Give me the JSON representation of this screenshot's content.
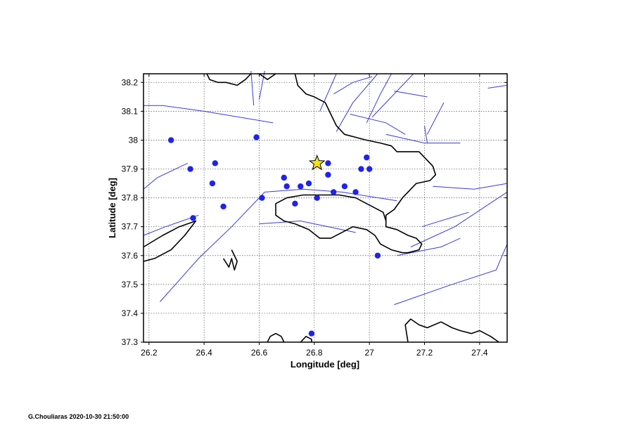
{
  "map": {
    "xlabel": "Longitude [deg]",
    "ylabel": "Latitude [deg]",
    "xlim": [
      26.18,
      27.5
    ],
    "ylim": [
      37.3,
      38.23
    ],
    "xticks": [
      26.2,
      26.4,
      26.6,
      26.8,
      27.0,
      27.2,
      27.4
    ],
    "xtick_labels": [
      "26.2",
      "26.4",
      "26.6",
      "26.8",
      "27",
      "27.2",
      "27.4"
    ],
    "yticks": [
      37.3,
      37.4,
      37.5,
      37.6,
      37.7,
      37.8,
      37.9,
      38.0,
      38.1,
      38.2
    ],
    "ytick_labels": [
      "37.3",
      "37.4",
      "37.5",
      "37.6",
      "37.7",
      "37.8",
      "37.9",
      "38",
      "38.1",
      "38.2"
    ],
    "grid": true,
    "colors": {
      "events": "#1f22ee",
      "faults": "#3a3ad6",
      "coast": "#000000",
      "star": "#f5e11a"
    },
    "mainshock": {
      "lon": 26.81,
      "lat": 37.92,
      "marker": "star-icon"
    },
    "events": [
      {
        "lon": 26.28,
        "lat": 38.0
      },
      {
        "lon": 26.59,
        "lat": 38.01
      },
      {
        "lon": 26.35,
        "lat": 37.9
      },
      {
        "lon": 26.44,
        "lat": 37.92
      },
      {
        "lon": 26.43,
        "lat": 37.85
      },
      {
        "lon": 26.47,
        "lat": 37.77
      },
      {
        "lon": 26.36,
        "lat": 37.73
      },
      {
        "lon": 26.61,
        "lat": 37.8
      },
      {
        "lon": 26.69,
        "lat": 37.87
      },
      {
        "lon": 26.7,
        "lat": 37.84
      },
      {
        "lon": 26.75,
        "lat": 37.84
      },
      {
        "lon": 26.78,
        "lat": 37.85
      },
      {
        "lon": 26.73,
        "lat": 37.78
      },
      {
        "lon": 26.81,
        "lat": 37.8
      },
      {
        "lon": 26.85,
        "lat": 37.92
      },
      {
        "lon": 26.85,
        "lat": 37.88
      },
      {
        "lon": 26.87,
        "lat": 37.82
      },
      {
        "lon": 26.91,
        "lat": 37.84
      },
      {
        "lon": 26.95,
        "lat": 37.82
      },
      {
        "lon": 26.97,
        "lat": 37.9
      },
      {
        "lon": 26.99,
        "lat": 37.94
      },
      {
        "lon": 27.0,
        "lat": 37.9
      },
      {
        "lon": 27.03,
        "lat": 37.6
      },
      {
        "lon": 26.79,
        "lat": 37.33
      }
    ],
    "faults": [
      [
        [
          26.18,
          38.12
        ],
        [
          26.25,
          38.12
        ],
        [
          26.4,
          38.1
        ],
        [
          26.65,
          38.06
        ]
      ],
      [
        [
          26.57,
          38.24
        ],
        [
          26.58,
          38.12
        ]
      ],
      [
        [
          26.62,
          38.24
        ],
        [
          26.6,
          38.14
        ]
      ],
      [
        [
          26.82,
          38.1
        ],
        [
          26.88,
          38.23
        ]
      ],
      [
        [
          26.87,
          38.16
        ],
        [
          26.94,
          38.2
        ],
        [
          27.01,
          38.22
        ]
      ],
      [
        [
          26.88,
          38.03
        ],
        [
          26.94,
          38.13
        ],
        [
          27.03,
          38.23
        ]
      ],
      [
        [
          27.08,
          38.23
        ],
        [
          27.04,
          38.16
        ],
        [
          26.99,
          38.06
        ]
      ],
      [
        [
          27.01,
          38.08
        ],
        [
          27.07,
          38.14
        ],
        [
          27.16,
          38.23
        ]
      ],
      [
        [
          27.09,
          38.17
        ],
        [
          27.21,
          38.15
        ]
      ],
      [
        [
          27.27,
          38.13
        ],
        [
          27.21,
          38.02
        ]
      ],
      [
        [
          27.2,
          38.05
        ],
        [
          27.21,
          37.99
        ]
      ],
      [
        [
          26.93,
          38.09
        ],
        [
          27.06,
          38.06
        ],
        [
          27.13,
          38.02
        ]
      ],
      [
        [
          27.06,
          38.02
        ],
        [
          27.2,
          37.99
        ],
        [
          27.33,
          37.99
        ]
      ],
      [
        [
          26.18,
          37.83
        ],
        [
          26.23,
          37.87
        ],
        [
          26.34,
          37.92
        ]
      ],
      [
        [
          26.18,
          37.67
        ],
        [
          26.26,
          37.7
        ],
        [
          26.38,
          37.74
        ]
      ],
      [
        [
          26.24,
          37.44
        ],
        [
          26.38,
          37.59
        ],
        [
          26.5,
          37.7
        ],
        [
          26.62,
          37.82
        ]
      ],
      [
        [
          26.62,
          37.82
        ],
        [
          26.76,
          37.83
        ],
        [
          26.9,
          37.82
        ],
        [
          27.1,
          37.79
        ]
      ],
      [
        [
          26.6,
          37.71
        ],
        [
          26.75,
          37.72
        ],
        [
          26.95,
          37.68
        ]
      ],
      [
        [
          27.23,
          37.84
        ],
        [
          27.38,
          37.83
        ],
        [
          27.5,
          37.85
        ]
      ],
      [
        [
          27.19,
          37.7
        ],
        [
          27.36,
          37.75
        ]
      ],
      [
        [
          27.15,
          37.63
        ],
        [
          27.31,
          37.7
        ],
        [
          27.5,
          37.82
        ]
      ],
      [
        [
          27.1,
          37.6
        ],
        [
          27.26,
          37.63
        ],
        [
          27.33,
          37.66
        ]
      ],
      [
        [
          27.09,
          37.43
        ],
        [
          27.3,
          37.5
        ],
        [
          27.46,
          37.55
        ],
        [
          27.5,
          37.64
        ]
      ],
      [
        [
          27.43,
          38.18
        ],
        [
          27.5,
          38.19
        ]
      ]
    ],
    "coastlines": [
      [
        [
          26.41,
          38.23
        ],
        [
          26.42,
          38.21
        ],
        [
          26.45,
          38.2
        ],
        [
          26.48,
          38.2
        ],
        [
          26.52,
          38.19
        ],
        [
          26.55,
          38.21
        ],
        [
          26.57,
          38.23
        ]
      ],
      [
        [
          26.6,
          38.23
        ],
        [
          26.63,
          38.21
        ],
        [
          26.66,
          38.23
        ]
      ],
      [
        [
          26.73,
          38.23
        ],
        [
          26.74,
          38.19
        ],
        [
          26.77,
          38.16
        ],
        [
          26.8,
          38.15
        ],
        [
          26.84,
          38.13
        ],
        [
          26.86,
          38.09
        ],
        [
          26.88,
          38.05
        ],
        [
          26.91,
          38.02
        ],
        [
          26.95,
          38.01
        ],
        [
          26.99,
          38.0
        ],
        [
          27.04,
          37.99
        ],
        [
          27.08,
          37.98
        ],
        [
          27.1,
          37.96
        ],
        [
          27.14,
          37.96
        ],
        [
          27.18,
          37.96
        ],
        [
          27.21,
          37.93
        ],
        [
          27.23,
          37.91
        ],
        [
          27.24,
          37.88
        ],
        [
          27.22,
          37.86
        ],
        [
          27.17,
          37.85
        ],
        [
          27.14,
          37.82
        ],
        [
          27.12,
          37.8
        ],
        [
          27.09,
          37.76
        ],
        [
          27.06,
          37.74
        ],
        [
          27.06,
          37.7
        ],
        [
          27.1,
          37.69
        ],
        [
          27.14,
          37.67
        ],
        [
          27.17,
          37.66
        ],
        [
          27.19,
          37.64
        ],
        [
          27.18,
          37.62
        ],
        [
          27.14,
          37.61
        ],
        [
          27.12,
          37.61
        ],
        [
          27.08,
          37.62
        ],
        [
          27.04,
          37.64
        ],
        [
          27.02,
          37.67
        ],
        [
          26.99,
          37.69
        ],
        [
          26.94,
          37.7
        ],
        [
          26.9,
          37.68
        ],
        [
          26.86,
          37.66
        ],
        [
          26.82,
          37.66
        ],
        [
          26.78,
          37.69
        ],
        [
          26.73,
          37.71
        ],
        [
          26.69,
          37.72
        ],
        [
          26.66,
          37.74
        ],
        [
          26.66,
          37.78
        ],
        [
          26.7,
          37.8
        ],
        [
          26.76,
          37.81
        ],
        [
          26.82,
          37.81
        ],
        [
          26.89,
          37.81
        ],
        [
          26.95,
          37.8
        ],
        [
          27.01,
          37.77
        ],
        [
          27.05,
          37.75
        ],
        [
          27.06,
          37.72
        ]
      ],
      [
        [
          26.18,
          37.63
        ],
        [
          26.25,
          37.67
        ],
        [
          26.31,
          37.7
        ],
        [
          26.37,
          37.72
        ],
        [
          26.33,
          37.67
        ],
        [
          26.28,
          37.62
        ],
        [
          26.22,
          37.59
        ],
        [
          26.18,
          37.58
        ]
      ],
      [
        [
          26.5,
          37.62
        ],
        [
          26.52,
          37.58
        ],
        [
          26.51,
          37.55
        ],
        [
          26.5,
          37.59
        ],
        [
          26.49,
          37.56
        ],
        [
          26.47,
          37.59
        ]
      ],
      [
        [
          27.14,
          37.3
        ],
        [
          27.13,
          37.36
        ],
        [
          27.15,
          37.38
        ],
        [
          27.18,
          37.36
        ],
        [
          27.21,
          37.35
        ],
        [
          27.26,
          37.37
        ],
        [
          27.3,
          37.35
        ],
        [
          27.33,
          37.34
        ],
        [
          27.37,
          37.33
        ],
        [
          27.4,
          37.34
        ],
        [
          27.44,
          37.32
        ],
        [
          27.47,
          37.3
        ]
      ],
      [
        [
          26.63,
          37.3
        ],
        [
          26.64,
          37.32
        ],
        [
          26.66,
          37.33
        ],
        [
          26.68,
          37.32
        ],
        [
          26.69,
          37.3
        ]
      ],
      [
        [
          26.75,
          37.3
        ],
        [
          26.77,
          37.32
        ],
        [
          26.79,
          37.31
        ],
        [
          26.79,
          37.3
        ]
      ]
    ]
  },
  "footer": {
    "text": "G.Chouliaras 2020-10-30 21:50:00"
  }
}
